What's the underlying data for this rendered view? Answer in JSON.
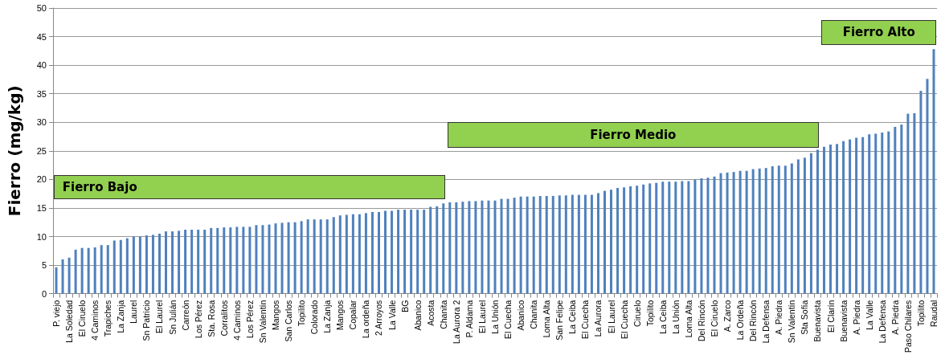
{
  "chart_data": {
    "type": "bar",
    "ylabel": "Fierro (mg/kg)",
    "categories": [
      "P. viejo",
      null,
      "La Soledad",
      null,
      "El Ciruelo",
      null,
      "4 Caminos",
      null,
      "Trapiches",
      null,
      "La Zanja",
      null,
      "Laurel",
      null,
      "Sn Patricio",
      null,
      "El Laurel",
      null,
      "Sn Julián",
      null,
      "Carreón",
      null,
      "Los Pérez",
      null,
      "Sta. Rosa",
      null,
      "Corralitos",
      null,
      "4 Caminos",
      null,
      "Los Pérez",
      null,
      "Sn Valentín",
      null,
      "Mangos",
      null,
      "San Carlos",
      null,
      "Topilito",
      null,
      "Colorado",
      null,
      "La Zanja",
      null,
      "Mangos",
      null,
      "Copalar",
      null,
      "La ordeña",
      null,
      "2 Arroyos",
      null,
      "La Valle",
      null,
      "BG",
      null,
      "Abanico",
      null,
      "Acosta",
      null,
      "Chanita",
      null,
      "La Aurora 2",
      null,
      "P. Aldama",
      null,
      "El Laurel",
      null,
      "La Unión",
      null,
      "El Cuecha",
      null,
      "Abanico",
      null,
      "Chanita",
      null,
      "Loma Alta",
      null,
      "San Felipe",
      null,
      "La Ceiba",
      null,
      "El Cuecha",
      null,
      "La Aurora",
      null,
      "El Laurel",
      null,
      "El Cuecha",
      null,
      "Ciruelo",
      null,
      "Topilito",
      null,
      "La Ceiba",
      null,
      "La Unión",
      null,
      "Loma Alta",
      null,
      "Del Rincón",
      null,
      "El Ciruelo",
      null,
      "A. Zarco",
      null,
      "La Ordeña",
      null,
      "Del Rincón",
      null,
      "La Defensa",
      null,
      "A. Piedra",
      null,
      "Sn Valentín",
      null,
      "Sta Sofía",
      null,
      "Buenavista",
      null,
      "El Clarín",
      null,
      "Buenavista",
      null,
      "A. Piedra",
      null,
      "La Valle",
      null,
      "La Defensa",
      null,
      "A. Piedra",
      null,
      "Paso Chilares",
      null,
      "Topilito",
      null,
      "Raudal"
    ],
    "values": [
      4.6,
      6.0,
      6.3,
      7.7,
      8.0,
      8.0,
      8.1,
      8.5,
      8.5,
      9.3,
      9.4,
      9.7,
      10.0,
      10.0,
      10.2,
      10.3,
      10.5,
      10.9,
      10.9,
      11.0,
      11.2,
      11.2,
      11.2,
      11.2,
      11.5,
      11.5,
      11.6,
      11.6,
      11.7,
      11.7,
      11.7,
      12.0,
      12.0,
      12.1,
      12.3,
      12.4,
      12.5,
      12.5,
      12.7,
      13.0,
      13.0,
      13.0,
      13.0,
      13.4,
      13.7,
      13.8,
      13.9,
      13.9,
      14.1,
      14.3,
      14.3,
      14.5,
      14.5,
      14.7,
      14.7,
      14.7,
      14.7,
      14.7,
      15.2,
      15.3,
      15.8,
      16.0,
      16.0,
      16.1,
      16.2,
      16.2,
      16.3,
      16.3,
      16.3,
      16.6,
      16.6,
      16.8,
      17.0,
      17.0,
      17.0,
      17.1,
      17.1,
      17.1,
      17.2,
      17.2,
      17.3,
      17.3,
      17.3,
      17.3,
      17.6,
      18.0,
      18.2,
      18.5,
      18.6,
      18.8,
      18.9,
      19.1,
      19.3,
      19.4,
      19.6,
      19.6,
      19.6,
      19.7,
      19.7,
      20.0,
      20.2,
      20.3,
      20.5,
      21.1,
      21.2,
      21.3,
      21.5,
      21.5,
      21.8,
      21.9,
      22.0,
      22.3,
      22.4,
      22.4,
      22.8,
      23.5,
      23.8,
      24.6,
      25.2,
      25.7,
      26.1,
      26.2,
      26.7,
      27.0,
      27.3,
      27.4,
      27.9,
      28.0,
      28.2,
      28.4,
      29.2,
      29.6,
      31.5,
      31.6,
      35.5,
      37.6,
      42.8
    ],
    "color": "#4f81bd",
    "ylim": [
      0,
      50
    ],
    "yticks": [
      0,
      5,
      10,
      15,
      20,
      25,
      30,
      35,
      40,
      45,
      50
    ],
    "grid": "y",
    "annotations": [
      "Fierro Bajo",
      "Fierro Medio",
      "Fierro Alto"
    ]
  }
}
